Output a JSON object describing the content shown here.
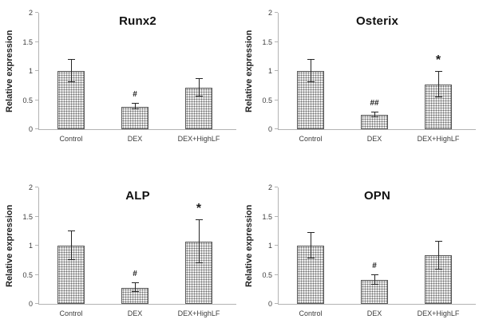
{
  "figure": {
    "background": "#ffffff",
    "layout": "2x2-grid-of-bar-charts"
  },
  "style": {
    "bar_fill": "#efefef",
    "bar_hatch_dot_color": "#6e6e6e",
    "bar_border_color": "#595959",
    "axis_color": "#b3b3b3",
    "tick_label_color": "#3d3d3d",
    "error_bar_color": "#262626",
    "title_color": "#111111",
    "marker_color": "#1a1a1a"
  },
  "chart_data": [
    {
      "type": "bar",
      "title": "Runx2",
      "ylabel": "Relative expression",
      "xlabel": "",
      "categories": [
        "Control",
        "DEX",
        "DEX+HighLF"
      ],
      "values": [
        1.0,
        0.39,
        0.71
      ],
      "errors": [
        0.19,
        0.05,
        0.15
      ],
      "annotations": [
        "",
        "#",
        ""
      ],
      "ylim": [
        0,
        2
      ],
      "yticks": [
        0,
        0.5,
        1,
        1.5,
        2
      ],
      "grid": false,
      "legend_position": "none"
    },
    {
      "type": "bar",
      "title": "Osterix",
      "ylabel": "Relative expression",
      "xlabel": "",
      "categories": [
        "Control",
        "DEX",
        "DEX+HighLF"
      ],
      "values": [
        1.0,
        0.25,
        0.77
      ],
      "errors": [
        0.19,
        0.04,
        0.22
      ],
      "annotations": [
        "",
        "##",
        "*"
      ],
      "ylim": [
        0,
        2
      ],
      "yticks": [
        0,
        0.5,
        1,
        1.5,
        2
      ],
      "grid": false,
      "legend_position": "none"
    },
    {
      "type": "bar",
      "title": "ALP",
      "ylabel": "Relative expression",
      "xlabel": "",
      "categories": [
        "Control",
        "DEX",
        "DEX+HighLF"
      ],
      "values": [
        1.0,
        0.28,
        1.07
      ],
      "errors": [
        0.25,
        0.08,
        0.37
      ],
      "annotations": [
        "",
        "#",
        "*"
      ],
      "ylim": [
        0,
        2
      ],
      "yticks": [
        0,
        0.5,
        1,
        1.5,
        2
      ],
      "grid": false,
      "legend_position": "none"
    },
    {
      "type": "bar",
      "title": "OPN",
      "ylabel": "Relative expression",
      "xlabel": "",
      "categories": [
        "Control",
        "DEX",
        "DEX+HighLF"
      ],
      "values": [
        1.0,
        0.41,
        0.83
      ],
      "errors": [
        0.22,
        0.08,
        0.24
      ],
      "annotations": [
        "",
        "#",
        ""
      ],
      "ylim": [
        0,
        2
      ],
      "yticks": [
        0,
        0.5,
        1,
        1.5,
        2
      ],
      "grid": false,
      "legend_position": "none"
    }
  ]
}
